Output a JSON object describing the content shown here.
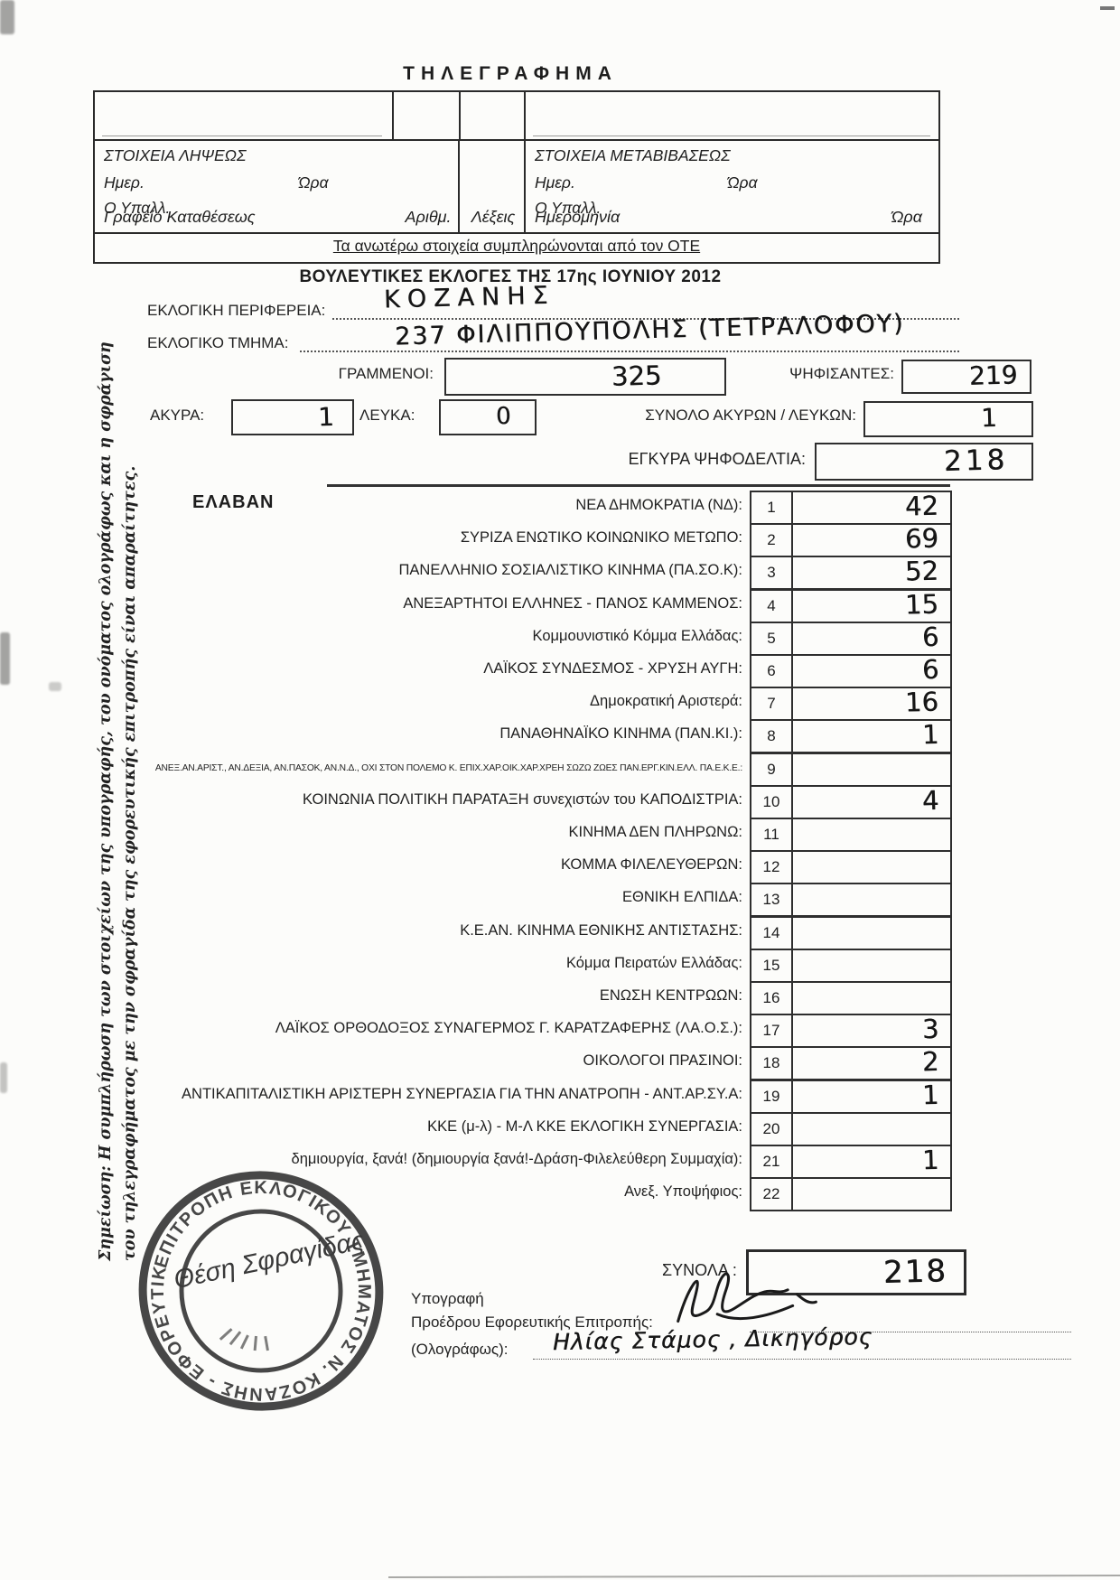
{
  "header": {
    "title": "ΤΗΛΕΓΡΑΦΗΜΑ",
    "table": {
      "office_label": "Γραφείο Καταθέσεως",
      "number_label": "Αριθμ.",
      "words_label": "Λέξεις",
      "date_label": "Ημερομηνία",
      "time_label": "Ώρα",
      "receipt_title": "ΣΤΟΙΧΕΙΑ ΛΗΨΕΩΣ",
      "transmit_title": "ΣΤΟΙΧΕΙΑ ΜΕΤΑΒΙΒΑΣΕΩΣ",
      "day_label": "Ημερ.",
      "hour_label": "Ώρα",
      "clerk_label": "Ο Υπαλλ.",
      "ote_note": "Τα ανωτέρω στοιχεία συμπληρώνονται από τον ΟΤΕ"
    },
    "election_title": "ΒΟΥΛΕΥΤΙΚΕΣ ΕΚΛΟΓΕΣ ΤΗΣ 17ης ΙΟΥΝΙΟΥ 2012"
  },
  "fields": {
    "district_label": "ΕΚΛΟΓΙΚΗ ΠΕΡΙΦΕΡΕΙΑ:",
    "district_value": "ΚΟΖΑΝΗΣ",
    "precinct_label": "ΕΚΛΟΓΙΚΟ ΤΜΗΜΑ:",
    "precinct_value": "237  ΦΙΛΙΠΠΟΥΠΟΛΗΣ (ΤΕΤΡΑΛΟΦΟΥ)",
    "registered_label": "ΓΡΑΜΜΕΝΟΙ:",
    "registered_value": "325",
    "voted_label": "ΨΗΦΙΣΑΝΤΕΣ:",
    "voted_value": "219",
    "invalid_label": "ΑΚΥΡΑ:",
    "invalid_value": "1",
    "blank_label": "ΛΕΥΚΑ:",
    "blank_value": "0",
    "invalid_blank_label": "ΣΥΝΟΛΟ ΑΚΥΡΩΝ / ΛΕΥΚΩΝ:",
    "invalid_blank_value": "1",
    "valid_label": "ΕΓΚΥΡΑ ΨΗΦΟΔΕΛΤΙΑ:",
    "valid_value": "218"
  },
  "results": {
    "heading": "ΕΛΑΒΑΝ",
    "rows": [
      {
        "num": "1",
        "party": "ΝΕΑ ΔΗΜΟΚΡΑΤΙΑ (ΝΔ):",
        "votes": "42"
      },
      {
        "num": "2",
        "party": "ΣΥΡΙΖΑ ΕΝΩΤΙΚΟ ΚΟΙΝΩΝΙΚΟ ΜΕΤΩΠΟ:",
        "votes": "69"
      },
      {
        "num": "3",
        "party": "ΠΑΝΕΛΛΗΝΙΟ ΣΟΣΙΑΛΙΣΤΙΚΟ ΚΙΝΗΜΑ (ΠΑ.ΣΟ.Κ):",
        "votes": "52"
      },
      {
        "num": "4",
        "party": "ΑΝΕΞΑΡΤΗΤΟΙ ΕΛΛΗΝΕΣ - ΠΑΝΟΣ ΚΑΜΜΕΝΟΣ:",
        "votes": "15"
      },
      {
        "num": "5",
        "party": "Κομμουνιστικό Κόμμα Ελλάδας:",
        "votes": "6"
      },
      {
        "num": "6",
        "party": "ΛΑΪΚΟΣ ΣΥΝΔΕΣΜΟΣ - ΧΡΥΣΗ ΑΥΓΗ:",
        "votes": "6"
      },
      {
        "num": "7",
        "party": "Δημοκρατική Αριστερά:",
        "votes": "16"
      },
      {
        "num": "8",
        "party": "ΠΑΝΑΘΗΝΑΪΚΟ ΚΙΝΗΜΑ (ΠΑΝ.ΚΙ.):",
        "votes": "1"
      },
      {
        "num": "9",
        "party": "ΑΝΕΞ.ΑΝ.ΑΡΙΣΤ., ΑΝ.ΔΕΞΙΑ, ΑΝ.ΠΑΣΟΚ, ΑΝ.Ν.Δ., ΟΧΙ ΣΤΟΝ ΠΟΛΕΜΟ Κ. ΕΠΙΧ.ΧΑΡ.ΟΙΚ.ΧΑΡ.ΧΡΕΗ ΣΩΖΩ ΖΩΕΣ ΠΑΝ.ΕΡΓ.ΚΙΝ.ΕΛΛ. ΠΑ.Ε.Κ.Ε.:",
        "votes": ""
      },
      {
        "num": "10",
        "party": "ΚΟΙΝΩΝΙΑ ΠΟΛΙΤΙΚΗ ΠΑΡΑΤΑΞΗ συνεχιστών του ΚΑΠΟΔΙΣΤΡΙΑ:",
        "votes": "4"
      },
      {
        "num": "11",
        "party": "ΚΙΝΗΜΑ ΔΕΝ ΠΛΗΡΩΝΩ:",
        "votes": ""
      },
      {
        "num": "12",
        "party": "ΚΟΜΜΑ ΦΙΛΕΛΕΥΘΕΡΩΝ:",
        "votes": ""
      },
      {
        "num": "13",
        "party": "ΕΘΝΙΚΗ ΕΛΠΙΔΑ:",
        "votes": ""
      },
      {
        "num": "14",
        "party": "Κ.Ε.ΑΝ. ΚΙΝΗΜΑ ΕΘΝΙΚΗΣ ΑΝΤΙΣΤΑΣΗΣ:",
        "votes": ""
      },
      {
        "num": "15",
        "party": "Κόμμα Πειρατών Ελλάδας:",
        "votes": ""
      },
      {
        "num": "16",
        "party": "ΕΝΩΣΗ ΚΕΝΤΡΩΩΝ:",
        "votes": ""
      },
      {
        "num": "17",
        "party": "ΛΑΪΚΟΣ ΟΡΘΟΔΟΞΟΣ ΣΥΝΑΓΕΡΜΟΣ Γ. ΚΑΡΑΤΖΑΦΕΡΗΣ (ΛΑ.Ο.Σ.):",
        "votes": "3"
      },
      {
        "num": "18",
        "party": "ΟΙΚΟΛΟΓΟΙ ΠΡΑΣΙΝΟΙ:",
        "votes": "2"
      },
      {
        "num": "19",
        "party": "ΑΝΤΙΚΑΠΙΤΑΛΙΣΤΙΚΗ ΑΡΙΣΤΕΡΗ ΣΥΝΕΡΓΑΣΙΑ ΓΙΑ ΤΗΝ ΑΝΑΤΡΟΠΗ - ΑΝΤ.ΑΡ.ΣΥ.Α:",
        "votes": "1"
      },
      {
        "num": "20",
        "party": "ΚΚΕ (μ-λ) - Μ-Λ ΚΚΕ ΕΚΛΟΓΙΚΗ ΣΥΝΕΡΓΑΣΙΑ:",
        "votes": ""
      },
      {
        "num": "21",
        "party": "δημιουργία, ξανά! (δημιουργία ξανά!-Δράση-Φιλελεύθερη Συμμαχία):",
        "votes": "1"
      },
      {
        "num": "22",
        "party": "Ανεξ. Υποψήφιος:",
        "votes": ""
      }
    ],
    "total_label": "ΣΥΝΟΛΑ :",
    "total_value": "218"
  },
  "signature": {
    "title": "Υπογραφή",
    "president_label": "Προέδρου Εφορευτικής Επιτροπής:",
    "holograph_label": "(Ολογράφως):",
    "name_value": "Ηλίας Στάμος , Δικηγόρος"
  },
  "stamp": {
    "ring_text": "ΕΠΙΤΡΟΠΗ ΕΚΛΟΓΙΚΟΥ ΤΜΗΜΑΤΟΣ Ν. ΚΟΖΑΝΗΣ - ΕΦΟΡΕΥΤΙΚΗ",
    "placeholder_text": "Θέση Σφραγίδας"
  },
  "side_note": {
    "line1": "Σημείωση: Η συμπλήρωση των στοιχείων της υπογραφής, του ονόματος ολογράφως και η σφράγιση",
    "line2": "του τηλεγραφήματος με την σφραγίδα της εφορευτικής επιτροπής είναι απαραίτητες."
  },
  "colors": {
    "ink": "#1d1d1d",
    "stamp_ink": "#2f2f2f"
  }
}
